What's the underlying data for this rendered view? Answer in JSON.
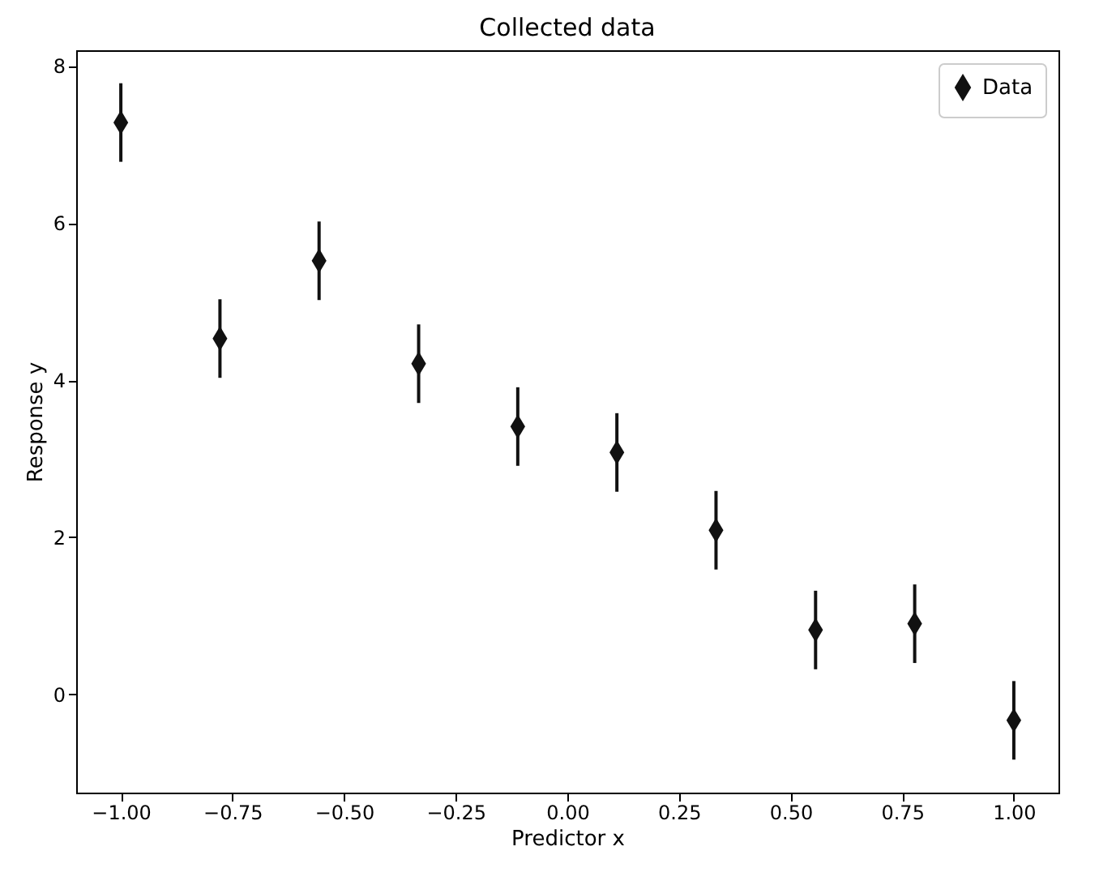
{
  "chart_data": {
    "type": "scatter",
    "title": "Collected data",
    "xlabel": "Predictor x",
    "ylabel": "Response y",
    "x": [
      -1,
      -0.778,
      -0.556,
      -0.333,
      -0.111,
      0.111,
      0.333,
      0.556,
      0.778,
      1
    ],
    "series": [
      {
        "name": "Data",
        "color": "#111111",
        "values": [
          7.28,
          4.53,
          5.52,
          4.21,
          3.41,
          3.08,
          2.09,
          0.82,
          0.9,
          -0.33
        ],
        "errors": [
          0.5,
          0.5,
          0.5,
          0.5,
          0.5,
          0.5,
          0.5,
          0.5,
          0.5,
          0.5
        ]
      }
    ],
    "xlim": [
      -1.1,
      1.1
    ],
    "ylim": [
      -1.25,
      8.2
    ],
    "xticks": [
      {
        "value": -1,
        "label": "−1.00"
      },
      {
        "value": -0.75,
        "label": "−0.75"
      },
      {
        "value": -0.5,
        "label": "−0.50"
      },
      {
        "value": -0.25,
        "label": "−0.25"
      },
      {
        "value": 0,
        "label": "0.00"
      },
      {
        "value": 0.25,
        "label": "0.25"
      },
      {
        "value": 0.5,
        "label": "0.50"
      },
      {
        "value": 0.75,
        "label": "0.75"
      },
      {
        "value": 1,
        "label": "1.00"
      }
    ],
    "yticks": [
      0,
      2,
      4,
      6,
      8
    ],
    "marker": "diamond",
    "legend": "top right",
    "grid": false
  }
}
